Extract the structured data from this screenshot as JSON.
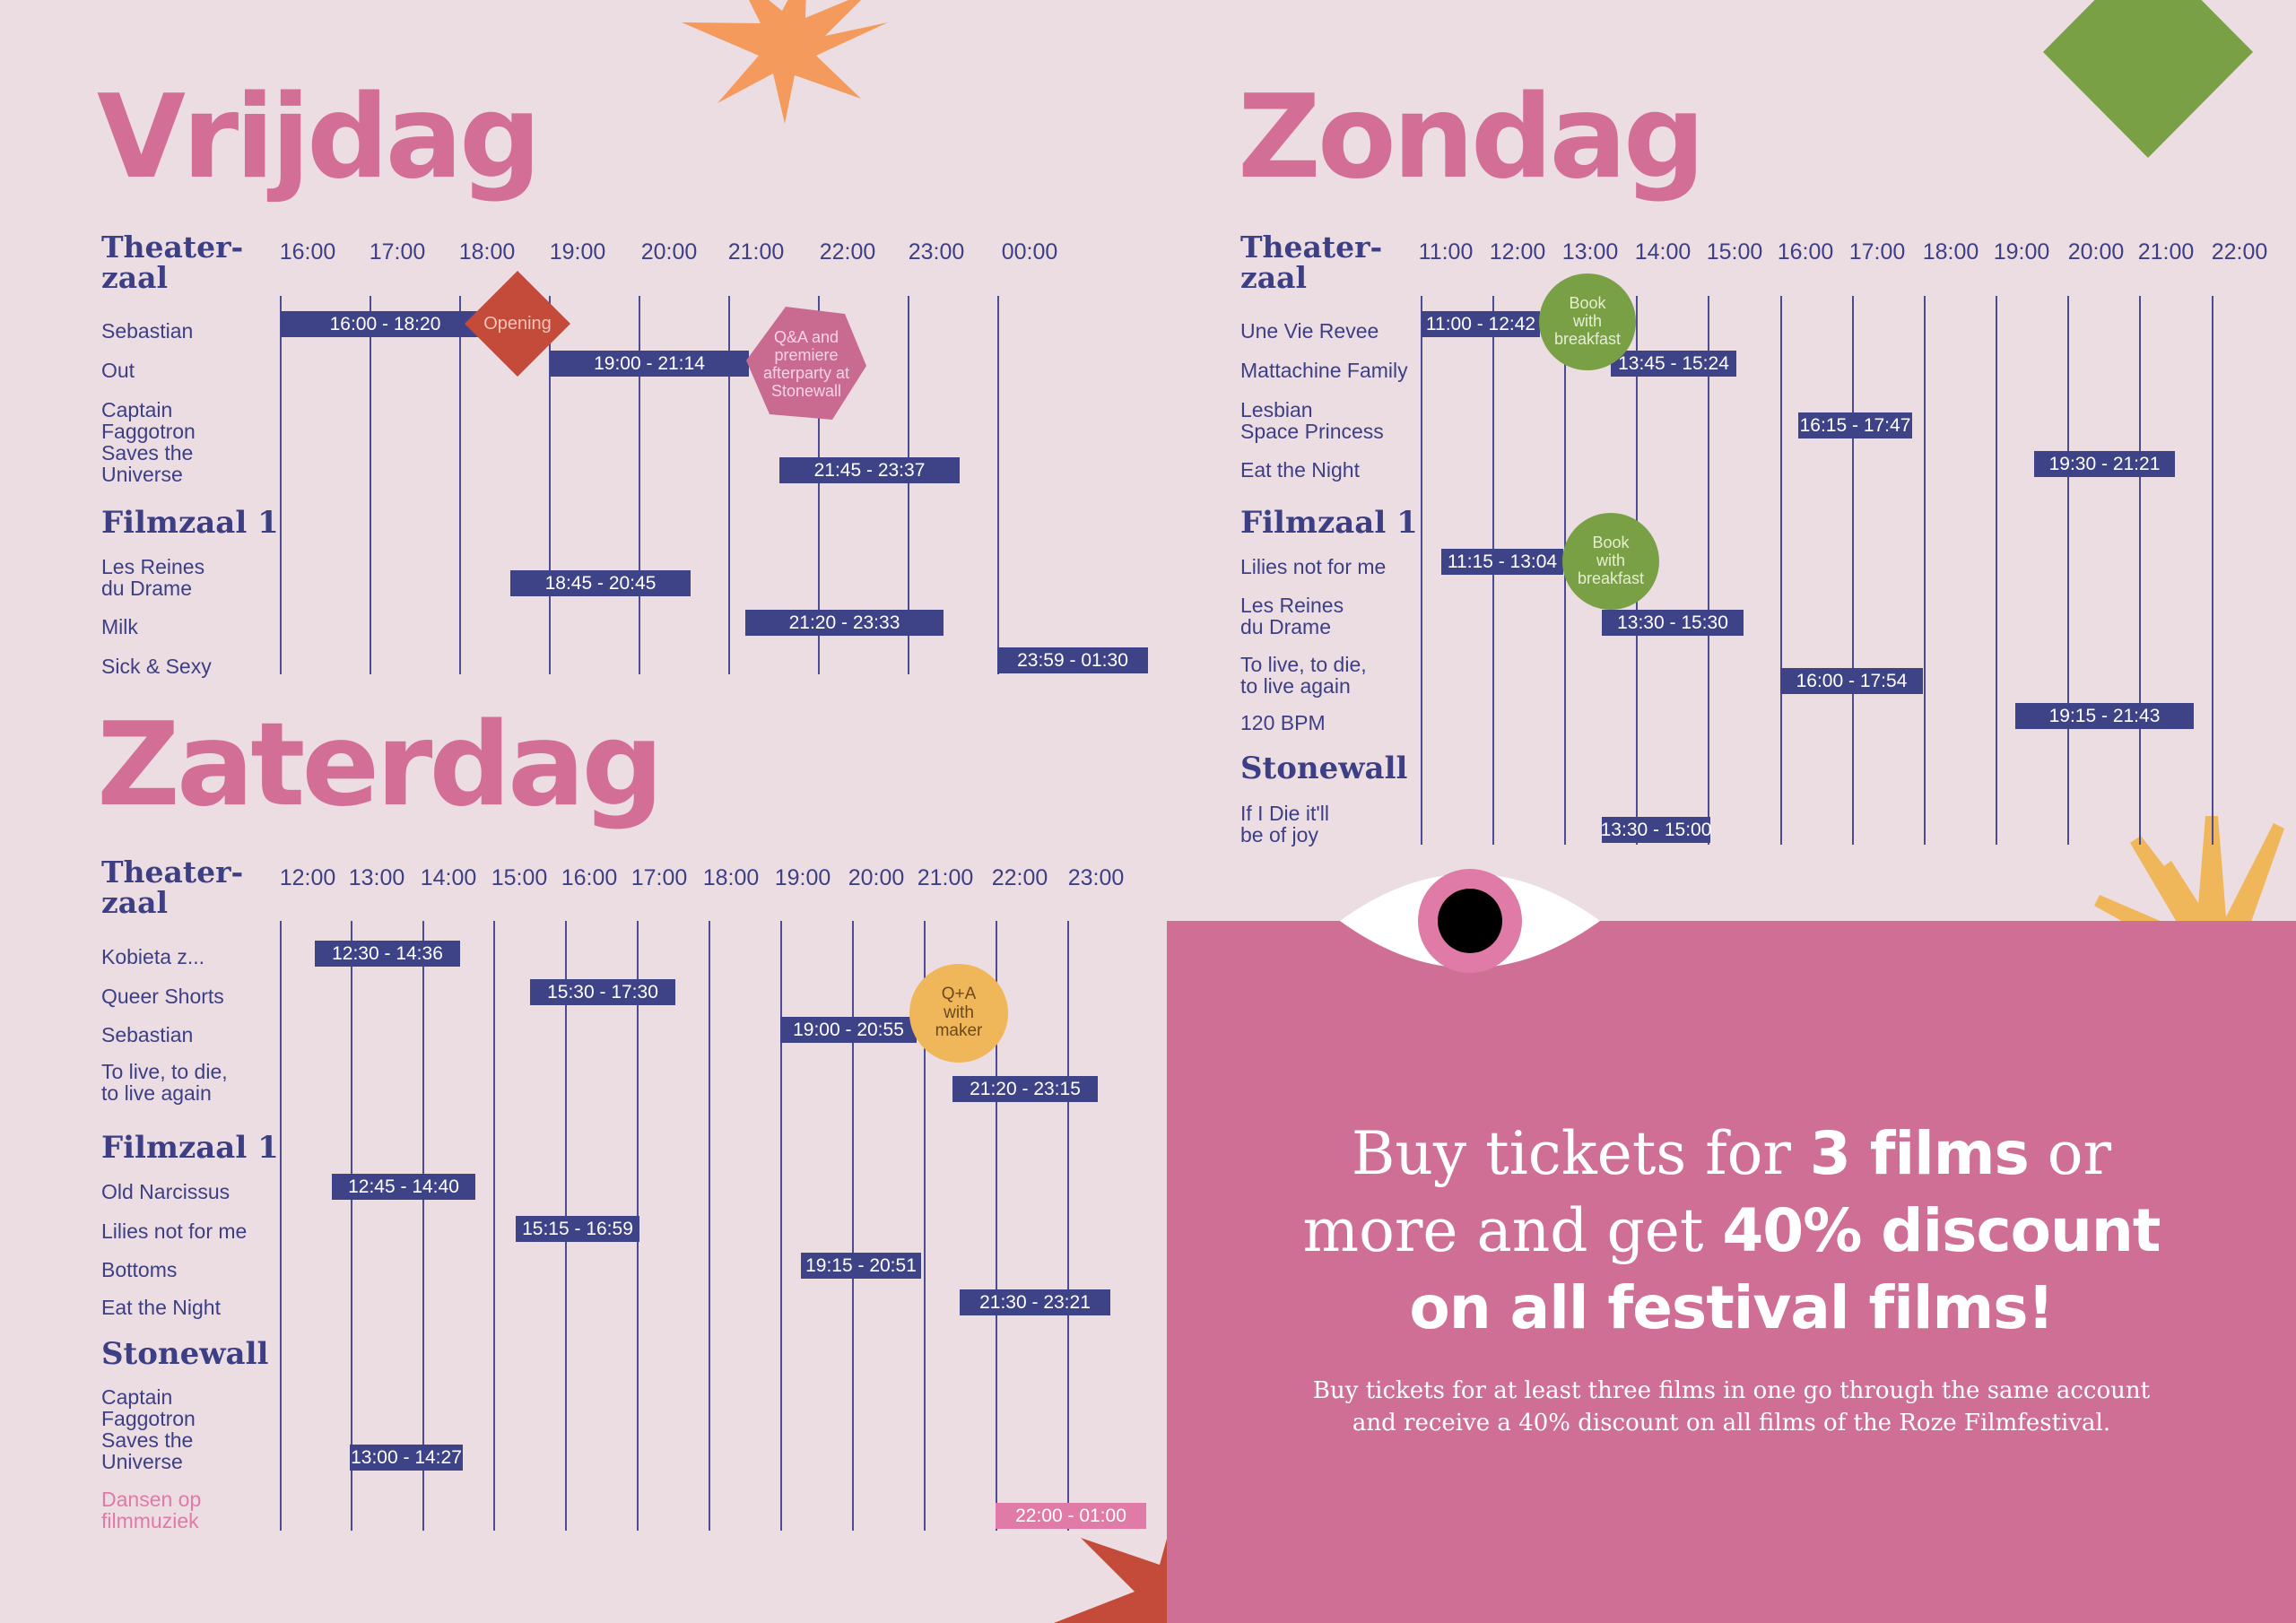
{
  "days": {
    "vrijdag": {
      "title": "Vrijdag",
      "ticks": [
        "16:00",
        "17:00",
        "18:00",
        "19:00",
        "20:00",
        "21:00",
        "22:00",
        "23:00",
        "00:00"
      ],
      "halls": [
        {
          "name": "Theater-\nzaal",
          "films": [
            {
              "title": "Sebastian",
              "time": "16:00 - 18:20"
            },
            {
              "title": "Out",
              "time": "19:00 - 21:14"
            },
            {
              "title": "Captain\nFaggotron\nSaves the\nUniverse",
              "time": "21:45 - 23:37"
            }
          ]
        },
        {
          "name": "Filmzaal 1",
          "films": [
            {
              "title": "Les Reines\ndu Drame",
              "time": "18:45 - 20:45"
            },
            {
              "title": "Milk",
              "time": "21:20 - 23:33"
            },
            {
              "title": "Sick & Sexy",
              "time": "23:59 - 01:30"
            }
          ]
        }
      ],
      "badges": [
        "Opening",
        "Q&A and\npremiere\nafterparty at\nStonewall"
      ]
    },
    "zaterdag": {
      "title": "Zaterdag",
      "ticks": [
        "12:00",
        "13:00",
        "14:00",
        "15:00",
        "16:00",
        "17:00",
        "18:00",
        "19:00",
        "20:00",
        "21:00",
        "22:00",
        "23:00"
      ],
      "halls": [
        {
          "name": "Theater-\nzaal",
          "films": [
            {
              "title": "Kobieta z...",
              "time": "12:30 - 14:36"
            },
            {
              "title": "Queer Shorts",
              "time": "15:30 - 17:30"
            },
            {
              "title": "Sebastian",
              "time": "19:00 - 20:55"
            },
            {
              "title": "To live, to die,\nto live again",
              "time": "21:20 - 23:15"
            }
          ]
        },
        {
          "name": "Filmzaal 1",
          "films": [
            {
              "title": "Old Narcissus",
              "time": "12:45 - 14:40"
            },
            {
              "title": "Lilies not for me",
              "time": "15:15 - 16:59"
            },
            {
              "title": "Bottoms",
              "time": "19:15 - 20:51"
            },
            {
              "title": "Eat the Night",
              "time": "21:30 - 23:21"
            }
          ]
        },
        {
          "name": "Stonewall",
          "films": [
            {
              "title": "Captain\nFaggotron\nSaves the\nUniverse",
              "time": "13:00 - 14:27"
            },
            {
              "title": "Dansen op\nfilmmuziek",
              "time": "22:00 - 01:00"
            }
          ]
        }
      ],
      "badges": [
        "Q+A\nwith\nmaker"
      ]
    },
    "zondag": {
      "title": "Zondag",
      "ticks": [
        "11:00",
        "12:00",
        "13:00",
        "14:00",
        "15:00",
        "16:00",
        "17:00",
        "18:00",
        "19:00",
        "20:00",
        "21:00",
        "22:00"
      ],
      "halls": [
        {
          "name": "Theater-\nzaal",
          "films": [
            {
              "title": "Une Vie Revee",
              "time": "11:00 - 12:42"
            },
            {
              "title": "Mattachine Family",
              "time": "13:45 - 15:24"
            },
            {
              "title": "Lesbian\nSpace Princess",
              "time": "16:15 - 17:47"
            },
            {
              "title": "Eat the Night",
              "time": "19:30 - 21:21"
            }
          ]
        },
        {
          "name": "Filmzaal 1",
          "films": [
            {
              "title": "Lilies not for me",
              "time": "11:15 - 13:04"
            },
            {
              "title": "Les Reines\ndu Drame",
              "time": "13:30 - 15:30"
            },
            {
              "title": "To live, to die,\nto live again",
              "time": "16:00 - 17:54"
            },
            {
              "title": "120 BPM",
              "time": "19:15 - 21:43"
            }
          ]
        },
        {
          "name": "Stonewall",
          "films": [
            {
              "title": "If I Die it'll\nbe of joy",
              "time": "13:30 - 15:00"
            }
          ]
        }
      ],
      "badges": [
        "Book\nwith\nbreakfast",
        "Book\nwith\nbreakfast"
      ]
    }
  },
  "promo": {
    "line1_a": "Buy tickets for ",
    "line1_b": "3 films",
    "line1_c": " or",
    "line2_a": "more and get ",
    "line2_b": "40% discount",
    "line3": "on all festival films!",
    "sub_line1": "Buy tickets for at least three films in one go through the same account",
    "sub_line2": "and receive a 40% discount on all films of the Roze Filmfestival."
  },
  "colors": {
    "background": "#ecdde3",
    "day_title": "#d36f97",
    "navy": "#3d3f85",
    "bar": "#3e4286",
    "promo_panel": "#d06f95",
    "opening_badge": "#c44a3a",
    "qa_badge": "#c96a91",
    "qa_maker_badge": "#f0b65a",
    "breakfast_badge": "#7aa045"
  }
}
